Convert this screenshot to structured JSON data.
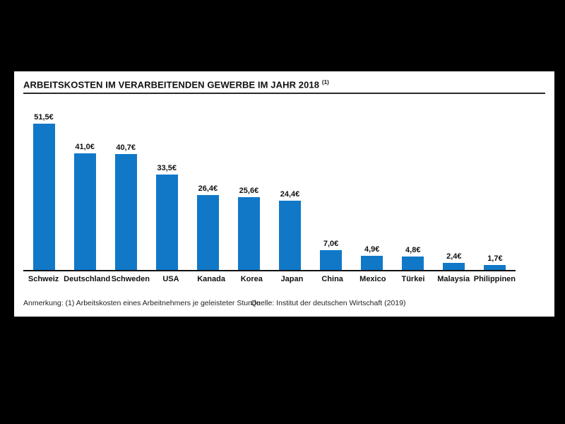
{
  "chart_data": {
    "type": "bar",
    "title": "ARBEITSKOSTEN IM VERARBEITENDEN GEWERBE IM JAHR 2018",
    "title_superscript": "(1)",
    "categories": [
      "Schweiz",
      "Deutschland",
      "Schweden",
      "USA",
      "Kanada",
      "Korea",
      "Japan",
      "China",
      "Mexico",
      "Türkei",
      "Malaysia",
      "Philippinen"
    ],
    "values": [
      51.5,
      41.0,
      40.7,
      33.5,
      26.4,
      25.6,
      24.4,
      7.0,
      4.9,
      4.8,
      2.4,
      1.7
    ],
    "value_labels": [
      "51,5€",
      "41,0€",
      "40,7€",
      "33,5€",
      "26,4€",
      "25,6€",
      "24,4€",
      "7,0€",
      "4,9€",
      "4,8€",
      "2,4€",
      "1,7€"
    ],
    "unit": "€",
    "ylim": [
      0,
      55
    ],
    "grid": false,
    "legend": "none",
    "bar_color": "#1178c8",
    "note": "Anmerkung: (1) Arbeitskosten eines Arbeitnehmers je geleisteter Stunde",
    "source": "Quelle: Institut der deutschen Wirtschaft (2019)"
  }
}
